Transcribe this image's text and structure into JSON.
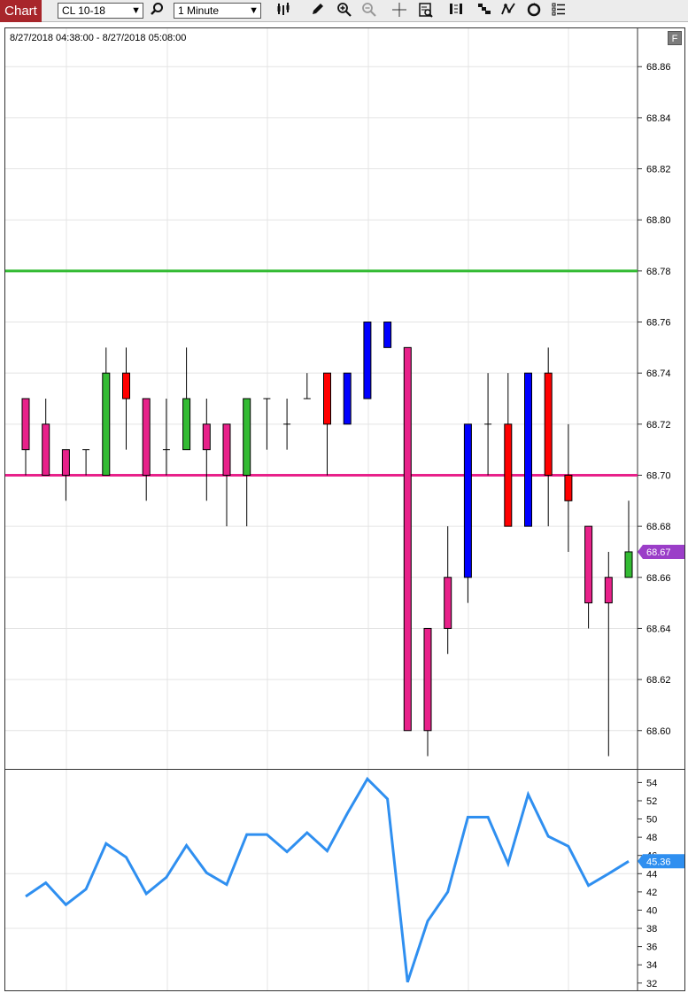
{
  "toolbar": {
    "chart_label": "Chart",
    "instrument": "CL 10-18",
    "interval": "1 Minute",
    "icons": [
      "search-icon",
      "bars-type-icon",
      "draw-pencil-icon",
      "zoom-in-icon",
      "zoom-out-icon",
      "crosshair-icon",
      "data-box-icon",
      "bar-spacing-icon",
      "stair-icon",
      "indicator-icon",
      "strategy-icon",
      "properties-icon"
    ]
  },
  "chart": {
    "date_range": "8/27/2018 04:38:00 - 8/27/2018 05:08:00",
    "f_button": "F"
  },
  "chart_data": [
    {
      "type": "candlestick",
      "y_ticks": [
        "68.86",
        "68.84",
        "68.82",
        "68.80",
        "68.78",
        "68.76",
        "68.74",
        "68.72",
        "68.70",
        "68.68",
        "68.66",
        "68.64",
        "68.62",
        "68.60"
      ],
      "ylim": [
        68.585,
        68.875
      ],
      "current_price": "68.67",
      "horizontal_lines": [
        {
          "value": 68.78,
          "color": "#33bb33"
        },
        {
          "value": 68.7,
          "color": "#e8218a"
        }
      ],
      "bar_colors": {
        "pink": "#e8218a",
        "green": "#33bb33",
        "red": "#ff0000",
        "blue": "#0000ff",
        "flat": "#000000"
      },
      "bars": [
        {
          "o": 68.71,
          "h": 68.73,
          "l": 68.7,
          "c": 68.73,
          "color": "pink"
        },
        {
          "o": 68.72,
          "h": 68.73,
          "l": 68.7,
          "c": 68.7,
          "color": "pink"
        },
        {
          "o": 68.71,
          "h": 68.71,
          "l": 68.69,
          "c": 68.7,
          "color": "pink"
        },
        {
          "o": 68.71,
          "h": 68.71,
          "l": 68.7,
          "c": 68.71,
          "color": "flat"
        },
        {
          "o": 68.7,
          "h": 68.75,
          "l": 68.7,
          "c": 68.74,
          "color": "green"
        },
        {
          "o": 68.74,
          "h": 68.75,
          "l": 68.71,
          "c": 68.73,
          "color": "red"
        },
        {
          "o": 68.73,
          "h": 68.73,
          "l": 68.69,
          "c": 68.7,
          "color": "pink"
        },
        {
          "o": 68.71,
          "h": 68.73,
          "l": 68.7,
          "c": 68.71,
          "color": "flat"
        },
        {
          "o": 68.71,
          "h": 68.75,
          "l": 68.71,
          "c": 68.73,
          "color": "green"
        },
        {
          "o": 68.72,
          "h": 68.73,
          "l": 68.69,
          "c": 68.71,
          "color": "pink"
        },
        {
          "o": 68.72,
          "h": 68.72,
          "l": 68.68,
          "c": 68.7,
          "color": "pink"
        },
        {
          "o": 68.7,
          "h": 68.73,
          "l": 68.68,
          "c": 68.73,
          "color": "green"
        },
        {
          "o": 68.73,
          "h": 68.73,
          "l": 68.71,
          "c": 68.73,
          "color": "flat"
        },
        {
          "o": 68.72,
          "h": 68.73,
          "l": 68.71,
          "c": 68.72,
          "color": "flat"
        },
        {
          "o": 68.73,
          "h": 68.74,
          "l": 68.73,
          "c": 68.73,
          "color": "flat"
        },
        {
          "o": 68.74,
          "h": 68.74,
          "l": 68.7,
          "c": 68.72,
          "color": "red"
        },
        {
          "o": 68.72,
          "h": 68.74,
          "l": 68.72,
          "c": 68.74,
          "color": "blue"
        },
        {
          "o": 68.73,
          "h": 68.76,
          "l": 68.73,
          "c": 68.76,
          "color": "blue"
        },
        {
          "o": 68.75,
          "h": 68.76,
          "l": 68.75,
          "c": 68.76,
          "color": "blue"
        },
        {
          "o": 68.75,
          "h": 68.75,
          "l": 68.6,
          "c": 68.6,
          "color": "pink"
        },
        {
          "o": 68.64,
          "h": 68.64,
          "l": 68.59,
          "c": 68.6,
          "color": "pink"
        },
        {
          "o": 68.64,
          "h": 68.68,
          "l": 68.63,
          "c": 68.66,
          "color": "pink"
        },
        {
          "o": 68.66,
          "h": 68.72,
          "l": 68.65,
          "c": 68.72,
          "color": "blue"
        },
        {
          "o": 68.72,
          "h": 68.74,
          "l": 68.7,
          "c": 68.72,
          "color": "flat"
        },
        {
          "o": 68.72,
          "h": 68.74,
          "l": 68.68,
          "c": 68.68,
          "color": "red"
        },
        {
          "o": 68.68,
          "h": 68.74,
          "l": 68.68,
          "c": 68.74,
          "color": "blue"
        },
        {
          "o": 68.74,
          "h": 68.75,
          "l": 68.68,
          "c": 68.7,
          "color": "red"
        },
        {
          "o": 68.7,
          "h": 68.72,
          "l": 68.67,
          "c": 68.69,
          "color": "red"
        },
        {
          "o": 68.68,
          "h": 68.68,
          "l": 68.64,
          "c": 68.65,
          "color": "pink"
        },
        {
          "o": 68.66,
          "h": 68.67,
          "l": 68.59,
          "c": 68.65,
          "color": "pink"
        },
        {
          "o": 68.66,
          "h": 68.69,
          "l": 68.66,
          "c": 68.67,
          "color": "green"
        }
      ]
    },
    {
      "type": "line",
      "y_ticks": [
        "54",
        "52",
        "50",
        "48",
        "46",
        "44",
        "42",
        "40",
        "38",
        "36",
        "34",
        "32"
      ],
      "ylim": [
        31.2,
        55.4
      ],
      "current_value": "45.36",
      "color": "#2f8ff0",
      "values": [
        41.5,
        43.0,
        40.6,
        42.3,
        47.3,
        45.8,
        41.8,
        43.6,
        47.1,
        44.1,
        42.8,
        48.3,
        48.3,
        46.4,
        48.5,
        46.5,
        50.6,
        54.4,
        52.2,
        32.1,
        38.8,
        42.0,
        50.2,
        50.2,
        45.1,
        52.7,
        48.1,
        47.0,
        42.7,
        44.0,
        45.36
      ]
    }
  ]
}
